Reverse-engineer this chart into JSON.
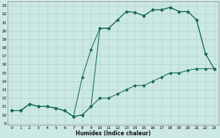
{
  "xlabel": "Humidex (Indice chaleur)",
  "bg_color": "#cce8e4",
  "grid_color": "#b0d8d4",
  "line_color": "#1a6b5a",
  "xlim": [
    -0.5,
    23.5
  ],
  "ylim": [
    8.8,
    23.5
  ],
  "xticks": [
    0,
    1,
    2,
    3,
    4,
    5,
    6,
    7,
    8,
    9,
    10,
    11,
    12,
    13,
    14,
    15,
    16,
    17,
    18,
    19,
    20,
    21,
    22,
    23
  ],
  "yticks": [
    9,
    10,
    11,
    12,
    13,
    14,
    15,
    16,
    17,
    18,
    19,
    20,
    21,
    22,
    23
  ],
  "line1_x": [
    0,
    1,
    2,
    3,
    4,
    5,
    6,
    7,
    8,
    9,
    10,
    11,
    12,
    13,
    14,
    15,
    16,
    17,
    18,
    19,
    20,
    21,
    22,
    23
  ],
  "line1_y": [
    10.5,
    10.5,
    11.3,
    11.0,
    11.0,
    10.8,
    10.5,
    9.8,
    10.0,
    11.0,
    12.0,
    12.0,
    12.5,
    13.0,
    13.5,
    13.5,
    14.0,
    14.5,
    15.0,
    15.0,
    15.3,
    15.5,
    15.5,
    15.5
  ],
  "line2_x": [
    0,
    1,
    2,
    3,
    4,
    5,
    6,
    7,
    8,
    9,
    10,
    11,
    12,
    13,
    14,
    15,
    16,
    17,
    18,
    19,
    20,
    21,
    22,
    23
  ],
  "line2_y": [
    10.5,
    10.5,
    11.3,
    11.0,
    11.0,
    10.8,
    10.5,
    9.8,
    14.5,
    17.8,
    20.3,
    20.3,
    21.3,
    22.3,
    22.2,
    21.8,
    22.5,
    22.5,
    22.8,
    22.3,
    22.3,
    21.3,
    17.3,
    15.5
  ],
  "line3_x": [
    0,
    1,
    2,
    3,
    4,
    5,
    6,
    7,
    8,
    9,
    10,
    11,
    12,
    13,
    14,
    15,
    16,
    17,
    18,
    19,
    20,
    21,
    22,
    23
  ],
  "line3_y": [
    10.5,
    10.5,
    11.3,
    11.0,
    11.0,
    10.8,
    10.5,
    9.8,
    10.0,
    11.0,
    20.3,
    20.3,
    21.3,
    22.3,
    22.2,
    21.8,
    22.5,
    22.5,
    22.8,
    22.3,
    22.3,
    21.3,
    17.3,
    15.5
  ]
}
